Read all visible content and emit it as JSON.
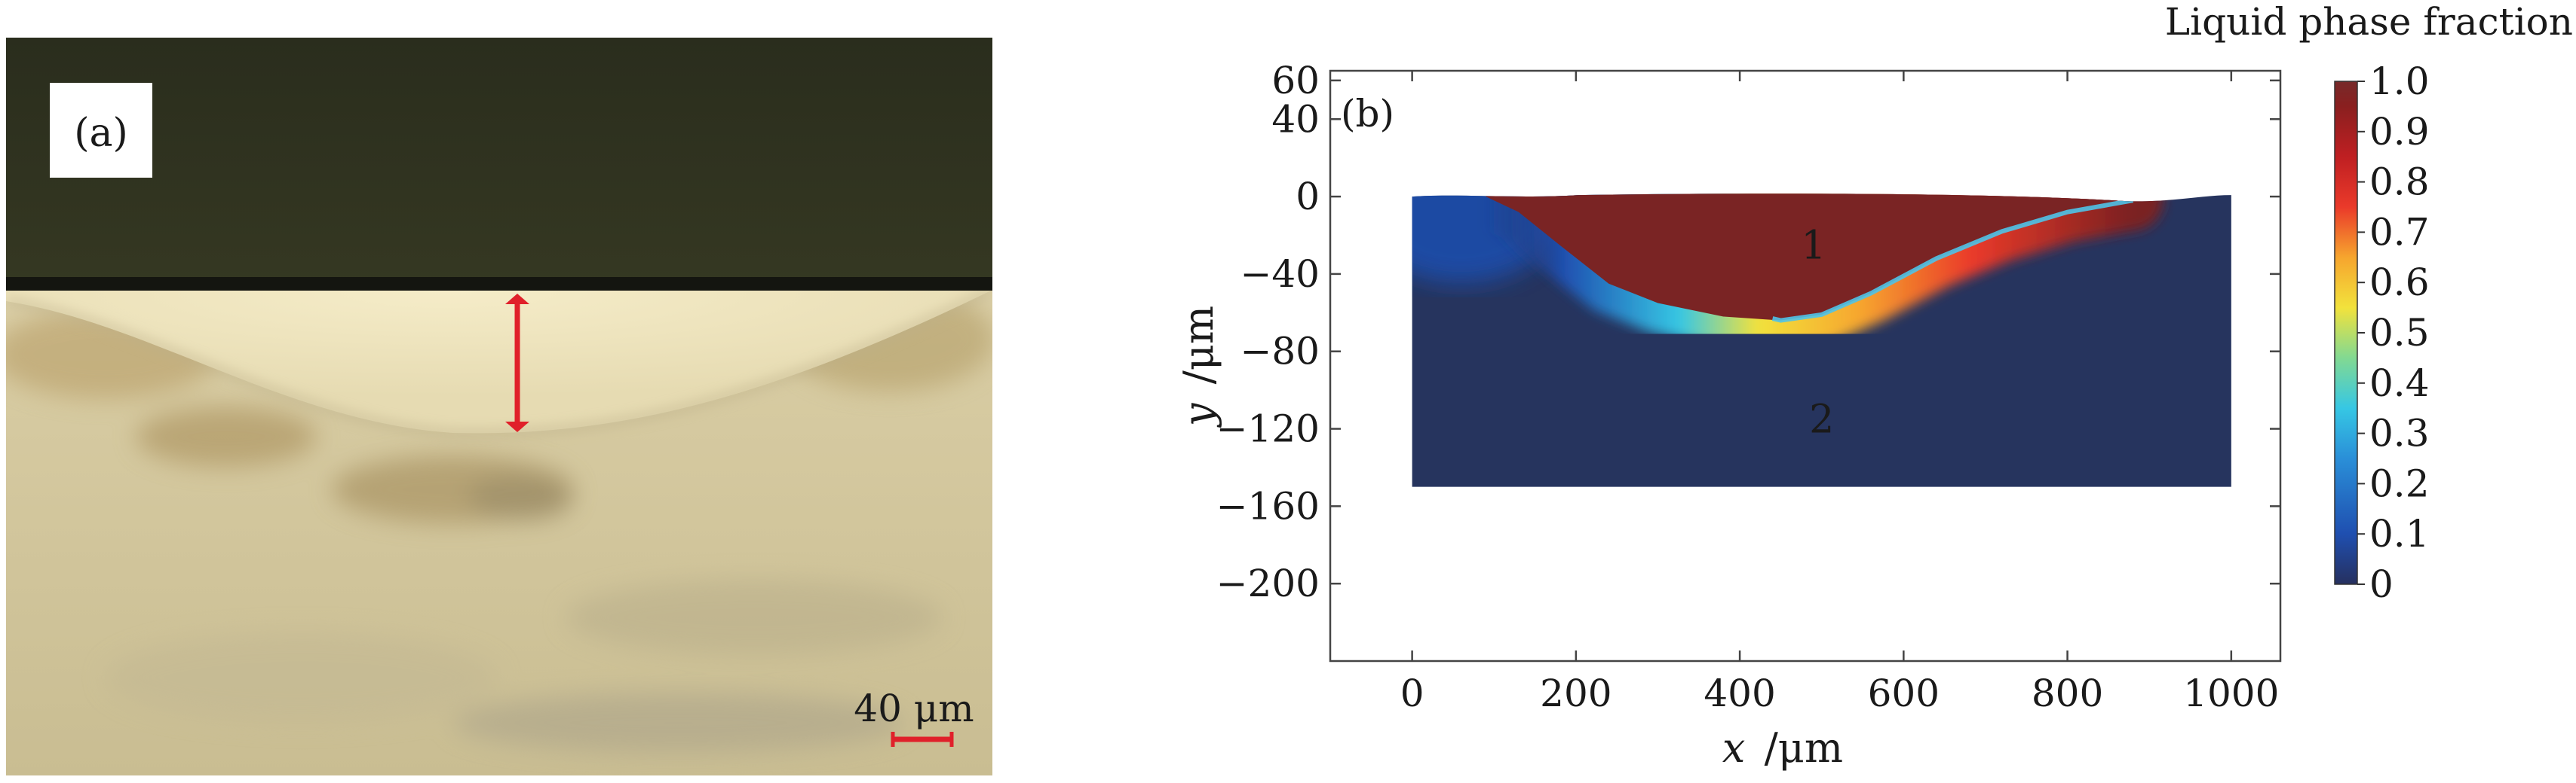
{
  "panel_a": {
    "label": "(a)",
    "scale_bar_text": "40 μm",
    "colors": {
      "resin": "#2f3220",
      "metal": "#d8ceaa",
      "marker": "#e0202a"
    }
  },
  "panel_b": {
    "label": "(b)",
    "region_labels": [
      "1",
      "2"
    ],
    "colorbar_title": "Liquid phase fraction",
    "colorbar_ticks": [
      "1.0",
      "0.9",
      "0.8",
      "0.7",
      "0.6",
      "0.5",
      "0.4",
      "0.3",
      "0.2",
      "0.1",
      "0"
    ],
    "colorbar_stops": [
      "#26305f",
      "#1f4fb0",
      "#2a8fd8",
      "#36c7e4",
      "#82d992",
      "#f2e23c",
      "#f6a52e",
      "#ea3a2a",
      "#bf1f22",
      "#8a1f1f",
      "#772a2a"
    ]
  },
  "chart_data": {
    "type": "heatmap",
    "title": "",
    "xlabel_var": "x",
    "xlabel_unit": "/μm",
    "ylabel_var": "y",
    "ylabel_unit": "/μm",
    "xlim": [
      -100,
      1060
    ],
    "ylim": [
      -240,
      65
    ],
    "xticks": [
      0,
      200,
      400,
      600,
      800,
      1000
    ],
    "yticks": [
      60,
      40,
      0,
      -40,
      -80,
      -120,
      -160,
      -200
    ],
    "domain": {
      "x": [
        0,
        1000
      ],
      "y_bottom": -150
    },
    "melt_pool_boundary": [
      [
        90,
        0
      ],
      [
        130,
        -8
      ],
      [
        180,
        -25
      ],
      [
        240,
        -45
      ],
      [
        300,
        -55
      ],
      [
        380,
        -62
      ],
      [
        450,
        -64
      ],
      [
        500,
        -61
      ],
      [
        560,
        -50
      ],
      [
        640,
        -32
      ],
      [
        720,
        -18
      ],
      [
        800,
        -8
      ],
      [
        880,
        -2
      ]
    ],
    "regions": [
      {
        "label": "1",
        "x": 490,
        "y": -25,
        "liquid_fraction": 1.0
      },
      {
        "label": "2",
        "x": 500,
        "y": -115,
        "liquid_fraction": 0
      }
    ],
    "colorbar": {
      "min": 0,
      "max": 1.0
    }
  }
}
